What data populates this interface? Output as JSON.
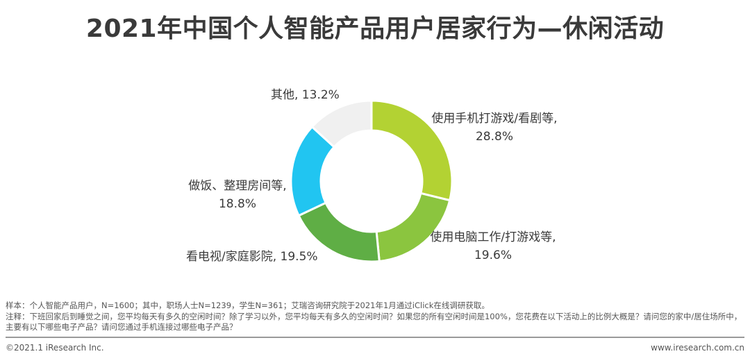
{
  "title": "2021年中国个人智能产品用户居家行为—休闲活动",
  "chart_data": {
    "type": "pie",
    "variant": "donut",
    "slices": [
      {
        "label_line1": "使用手机打游戏/看剧等,",
        "label_line2": "28.8%",
        "value": 28.8,
        "color": "#b3d233"
      },
      {
        "label_line1": "使用电脑工作/打游戏等,",
        "label_line2": "19.6%",
        "value": 19.6,
        "color": "#8bc53f"
      },
      {
        "label_line1": "看电视/家庭影院, 19.5%",
        "label_line2": "",
        "value": 19.5,
        "color": "#5fae45"
      },
      {
        "label_line1": "做饭、整理房间等,",
        "label_line2": "18.8%",
        "value": 18.8,
        "color": "#21c5f1"
      },
      {
        "label_line1": "其他, 13.2%",
        "label_line2": "",
        "value": 13.2,
        "color": "#f0f0f0"
      }
    ]
  },
  "notes": {
    "sample": "样本：个人智能产品用户，N=1600；其中，职场人士N=1239，学生N=361；艾瑞咨询研究院于2021年1月通过iClick在线调研获取。",
    "note": "注释：下班回家后到睡觉之间，您平均每天有多久的空闲时间？除了学习以外，您平均每天有多久的空闲时间？如果您的所有空闲时间是100%，您花费在以下活动上的比例大概是？请问您的家中/居住场所中，主要有以下哪些电子产品？请问您通过手机连接过哪些电子产品？"
  },
  "footer": {
    "copyright": "©2021.1 iResearch Inc.",
    "website": "www.iresearch.com.cn"
  }
}
